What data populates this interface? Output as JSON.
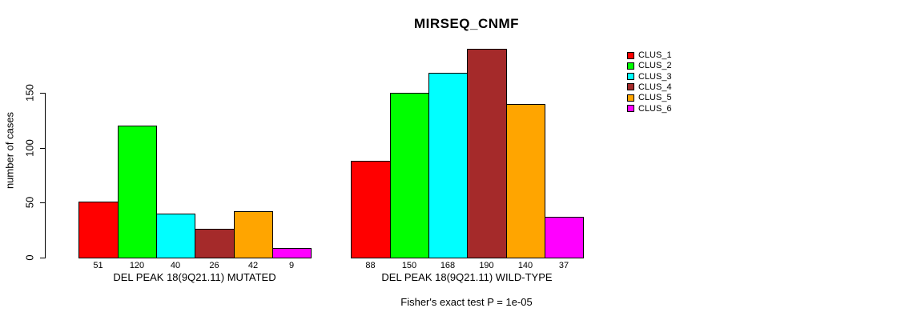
{
  "chart_data": {
    "type": "bar",
    "title": "MIRSEQ_CNMF",
    "ylabel": "number of cases",
    "xlabel": "",
    "yticks": [
      0,
      50,
      100,
      150
    ],
    "ylim": [
      0,
      196
    ],
    "grid": false,
    "legend_position": "right",
    "categories": [
      "CLUS_1",
      "CLUS_2",
      "CLUS_3",
      "CLUS_4",
      "CLUS_5",
      "CLUS_6"
    ],
    "series_colors": [
      "#FF0000",
      "#00FF00",
      "#00FFFF",
      "#A52A2A",
      "#FFA500",
      "#FF00FF"
    ],
    "groups": [
      {
        "label": "DEL PEAK 18(9Q21.11) MUTATED",
        "values": [
          51,
          120,
          40,
          26,
          42,
          9
        ]
      },
      {
        "label": "DEL PEAK 18(9Q21.11) WILD-TYPE",
        "values": [
          88,
          150,
          168,
          190,
          140,
          37
        ]
      }
    ],
    "legend": [
      {
        "label": "CLUS_1",
        "color": "#FF0000"
      },
      {
        "label": "CLUS_2",
        "color": "#00FF00"
      },
      {
        "label": "CLUS_3",
        "color": "#00FFFF"
      },
      {
        "label": "CLUS_4",
        "color": "#A52A2A"
      },
      {
        "label": "CLUS_5",
        "color": "#FFA500"
      },
      {
        "label": "CLUS_6",
        "color": "#FF00FF"
      }
    ],
    "footnote": "Fisher's exact test P = 1e-05"
  }
}
